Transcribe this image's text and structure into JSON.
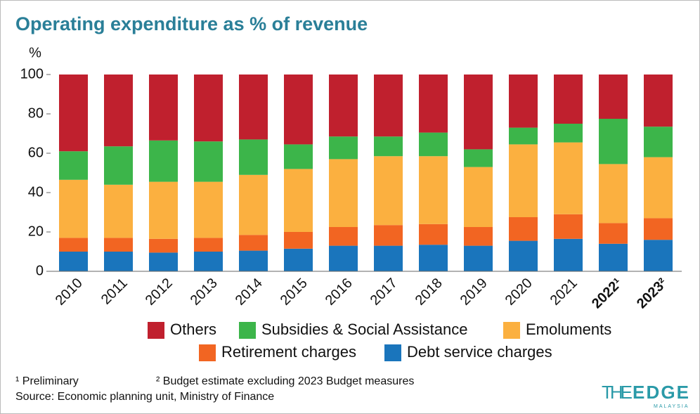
{
  "chart_data": {
    "type": "stacked_bar",
    "title": "Operating expenditure as % of revenue",
    "y_label": "%",
    "categories": [
      "2010",
      "2011",
      "2012",
      "2013",
      "2014",
      "2015",
      "2016",
      "2017",
      "2018",
      "2019",
      "2020",
      "2021",
      "2022¹",
      "2023²"
    ],
    "series": [
      {
        "name": "Debt service charges",
        "color": "#1a75bc",
        "values": [
          10,
          10,
          9.5,
          10,
          10.5,
          11.5,
          13,
          13,
          13.5,
          13,
          15.5,
          16.5,
          14,
          16
        ]
      },
      {
        "name": "Retirement charges",
        "color": "#f26522",
        "values": [
          7,
          7,
          7,
          7,
          8,
          8.5,
          9.5,
          10.5,
          10.5,
          9.5,
          12,
          12.5,
          10.5,
          11
        ]
      },
      {
        "name": "Emoluments",
        "color": "#fbb040",
        "values": [
          29.5,
          27,
          29,
          28.5,
          30.5,
          32,
          34.5,
          35,
          34.5,
          30.5,
          37,
          36.5,
          30,
          31
        ]
      },
      {
        "name": "Subsidies & Social Assistance",
        "color": "#3cb54a",
        "values": [
          14.5,
          19.5,
          21,
          20.5,
          18,
          12.5,
          11.5,
          10,
          12,
          9,
          8.5,
          9.5,
          23,
          15.5
        ]
      },
      {
        "name": "Others",
        "color": "#c0202e",
        "values": [
          39,
          36.5,
          33.5,
          34,
          33,
          35.5,
          31.5,
          31.5,
          29.5,
          38,
          27,
          25,
          22.5,
          26.5
        ]
      }
    ],
    "ylim": [
      0,
      100
    ],
    "yticks": [
      0,
      20,
      40,
      60,
      80,
      100
    ],
    "footnotes": [
      "¹ Preliminary",
      "² Budget estimate excluding 2023 Budget measures"
    ],
    "source": "Source: Economic planning unit, Ministry of Finance",
    "logo": {
      "the": "THE",
      "edge": "EDGE",
      "sub": "MALAYSIA"
    }
  }
}
